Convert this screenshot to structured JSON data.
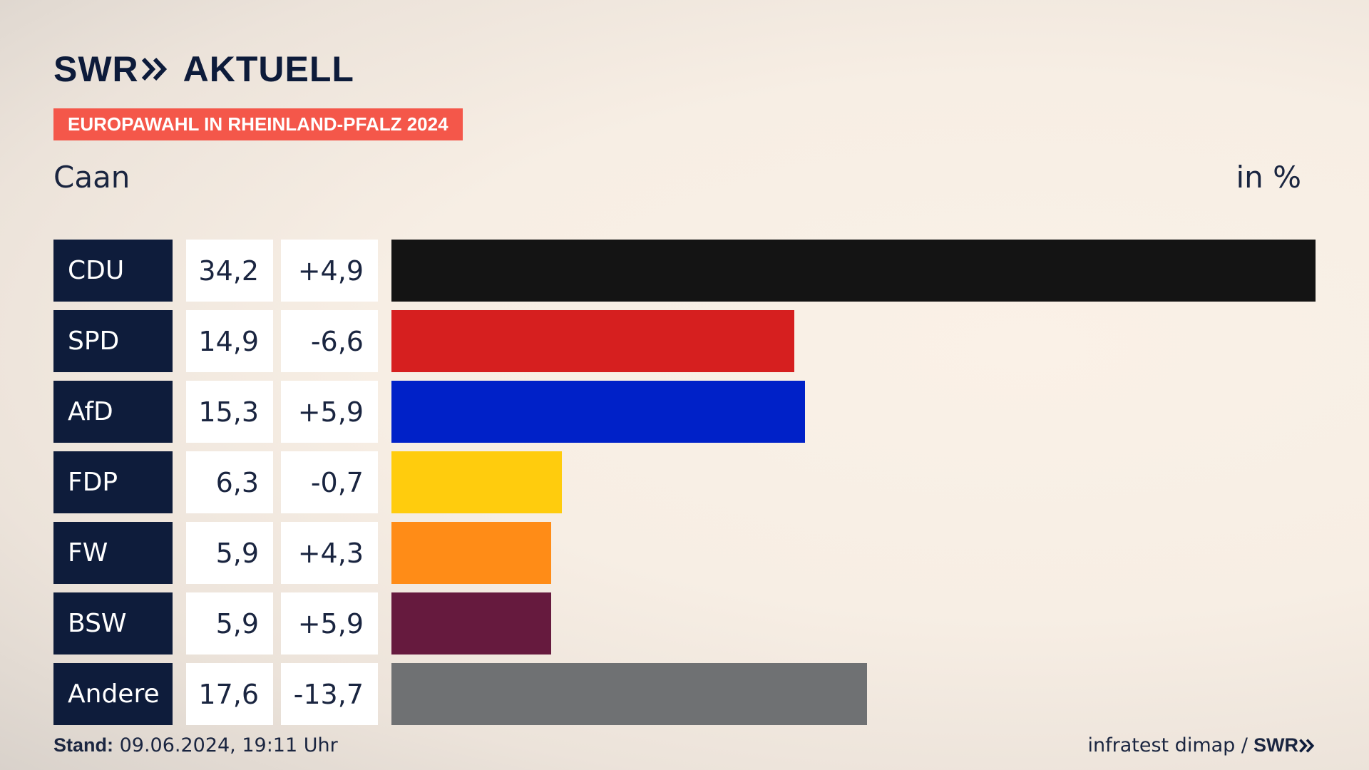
{
  "header": {
    "brand": "SWR",
    "section": "AKTUELL",
    "badge": "EUROPAWAHL IN RHEINLAND-PFALZ 2024",
    "region": "Caan",
    "unit": "in %"
  },
  "footer": {
    "stand_label": "Stand:",
    "stand_value": "09.06.2024, 19:11 Uhr",
    "source": "infratest dimap /",
    "source_brand": "SWR"
  },
  "rows": [
    {
      "party": "CDU",
      "value": "34,2",
      "diff": "+4,9"
    },
    {
      "party": "SPD",
      "value": "14,9",
      "diff": "-6,6"
    },
    {
      "party": "AfD",
      "value": "15,3",
      "diff": "+5,9"
    },
    {
      "party": "FDP",
      "value": "6,3",
      "diff": "-0,7"
    },
    {
      "party": "FW",
      "value": "5,9",
      "diff": "+4,3"
    },
    {
      "party": "BSW",
      "value": "5,9",
      "diff": "+5,9"
    },
    {
      "party": "Andere",
      "value": "17,6",
      "diff": "-13,7"
    }
  ],
  "chart_data": {
    "type": "bar",
    "orientation": "horizontal",
    "title": "EUROPAWAHL IN RHEINLAND-PFALZ 2024",
    "subtitle": "Caan",
    "unit": "in %",
    "categories": [
      "CDU",
      "SPD",
      "AfD",
      "FDP",
      "FW",
      "BSW",
      "Andere"
    ],
    "values": [
      34.2,
      14.9,
      15.3,
      6.3,
      5.9,
      5.9,
      17.6
    ],
    "changes": [
      4.9,
      -6.6,
      5.9,
      -0.7,
      4.3,
      5.9,
      -13.7
    ],
    "colors": [
      "#141414",
      "#d61f1f",
      "#0021c8",
      "#ffcc0d",
      "#ff8c17",
      "#661a3e",
      "#6f7173"
    ],
    "xlim": [
      0,
      34.2
    ]
  }
}
